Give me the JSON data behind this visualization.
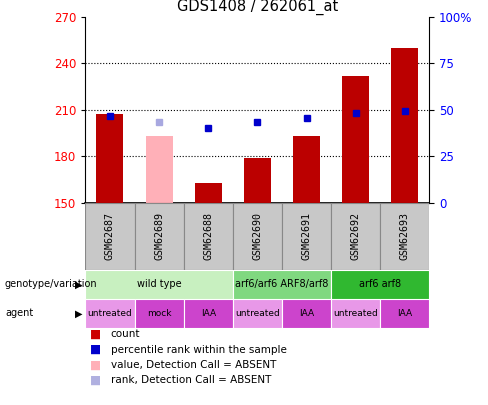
{
  "title": "GDS1408 / 262061_at",
  "samples": [
    "GSM62687",
    "GSM62689",
    "GSM62688",
    "GSM62690",
    "GSM62691",
    "GSM62692",
    "GSM62693"
  ],
  "bar_values": [
    207,
    193,
    163,
    179,
    193,
    232,
    250
  ],
  "bar_absent": [
    false,
    true,
    false,
    false,
    false,
    false,
    false
  ],
  "percentile_values": [
    206,
    202,
    198,
    202,
    205,
    208,
    209
  ],
  "percentile_absent": [
    false,
    true,
    false,
    false,
    false,
    false,
    false
  ],
  "ylim_left": [
    150,
    270
  ],
  "ylim_right": [
    0,
    100
  ],
  "yticks_left": [
    150,
    180,
    210,
    240,
    270
  ],
  "yticks_right": [
    0,
    25,
    50,
    75,
    100
  ],
  "ytick_labels_right": [
    "0",
    "25",
    "50",
    "75",
    "100%"
  ],
  "dotted_lines": [
    180,
    210,
    240
  ],
  "genotype_groups": [
    {
      "label": "wild type",
      "span": [
        0,
        3
      ],
      "color": "#c8f0c0"
    },
    {
      "label": "arf6/arf6 ARF8/arf8",
      "span": [
        3,
        5
      ],
      "color": "#80d880"
    },
    {
      "label": "arf6 arf8",
      "span": [
        5,
        7
      ],
      "color": "#30b830"
    }
  ],
  "agent_groups": [
    {
      "label": "untreated",
      "span": [
        0,
        1
      ],
      "color": "#e898e8"
    },
    {
      "label": "mock",
      "span": [
        1,
        2
      ],
      "color": "#cc44cc"
    },
    {
      "label": "IAA",
      "span": [
        2,
        3
      ],
      "color": "#cc44cc"
    },
    {
      "label": "untreated",
      "span": [
        3,
        4
      ],
      "color": "#e898e8"
    },
    {
      "label": "IAA",
      "span": [
        4,
        5
      ],
      "color": "#cc44cc"
    },
    {
      "label": "untreated",
      "span": [
        5,
        6
      ],
      "color": "#e898e8"
    },
    {
      "label": "IAA",
      "span": [
        6,
        7
      ],
      "color": "#cc44cc"
    }
  ],
  "legend_items": [
    {
      "label": "count",
      "color": "#cc0000"
    },
    {
      "label": "percentile rank within the sample",
      "color": "#0000cc"
    },
    {
      "label": "value, Detection Call = ABSENT",
      "color": "#ffb0b8"
    },
    {
      "label": "rank, Detection Call = ABSENT",
      "color": "#b0b0e0"
    }
  ],
  "bar_color_present": "#bb0000",
  "bar_color_absent": "#ffb0b8",
  "dot_color_present": "#0000cc",
  "dot_color_absent": "#a8a8e0",
  "bar_baseline": 150,
  "bar_width": 0.55,
  "sample_box_color": "#c8c8c8",
  "sample_box_edge": "#888888"
}
